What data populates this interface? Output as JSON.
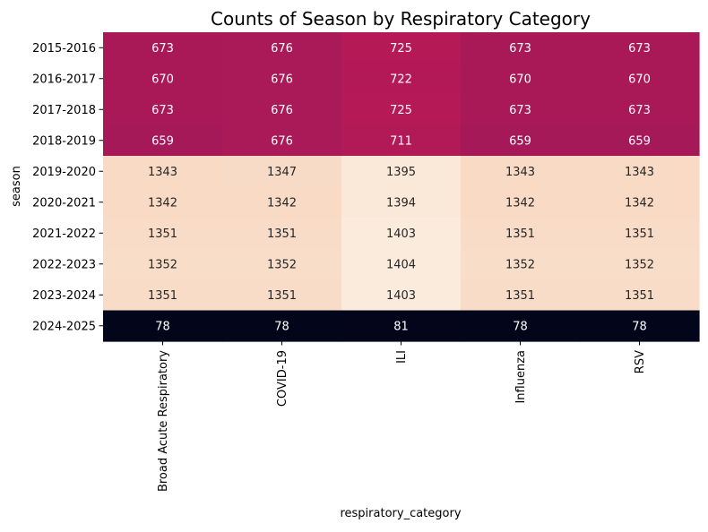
{
  "chart_data": {
    "type": "heatmap",
    "title": "Counts of Season by Respiratory Category",
    "xlabel": "respiratory_category",
    "ylabel": "season",
    "columns": [
      "Broad Acute Respiratory",
      "COVID-19",
      "ILI",
      "Influenza",
      "RSV"
    ],
    "rows": [
      "2015-2016",
      "2016-2017",
      "2017-2018",
      "2018-2019",
      "2019-2020",
      "2020-2021",
      "2021-2022",
      "2022-2023",
      "2023-2024",
      "2024-2025"
    ],
    "values": [
      [
        673,
        676,
        725,
        673,
        673
      ],
      [
        670,
        676,
        722,
        670,
        670
      ],
      [
        673,
        676,
        725,
        673,
        673
      ],
      [
        659,
        676,
        711,
        659,
        659
      ],
      [
        1343,
        1347,
        1395,
        1343,
        1343
      ],
      [
        1342,
        1342,
        1394,
        1342,
        1342
      ],
      [
        1351,
        1351,
        1403,
        1351,
        1351
      ],
      [
        1352,
        1352,
        1404,
        1352,
        1352
      ],
      [
        1351,
        1351,
        1403,
        1351,
        1351
      ],
      [
        78,
        78,
        81,
        78,
        78
      ]
    ],
    "colorbar": false,
    "grid": false,
    "colormap": "rocket",
    "colors": {
      "high": "#faeadc",
      "upper_mid": "#f6d9c4",
      "mid": "#c0175a",
      "low": "#03051a",
      "text_dark": "#262626",
      "text_light": "#ffffff"
    }
  }
}
